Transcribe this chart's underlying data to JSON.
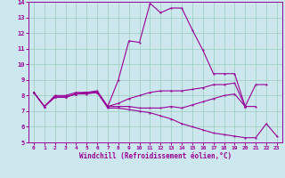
{
  "xlabel": "Windchill (Refroidissement éolien,°C)",
  "xlim": [
    -0.5,
    23.5
  ],
  "ylim": [
    5,
    14
  ],
  "yticks": [
    5,
    6,
    7,
    8,
    9,
    10,
    11,
    12,
    13,
    14
  ],
  "xticks": [
    0,
    1,
    2,
    3,
    4,
    5,
    6,
    7,
    8,
    9,
    10,
    11,
    12,
    13,
    14,
    15,
    16,
    17,
    18,
    19,
    20,
    21,
    22,
    23
  ],
  "bg_color": "#cce8ee",
  "line_color": "#990099",
  "grid_color": "#99ccbb",
  "series": [
    {
      "x": [
        0,
        1,
        2,
        3,
        4,
        5,
        6,
        7,
        8,
        9,
        10,
        11,
        12,
        13,
        14,
        15,
        16,
        17,
        18,
        19,
        20,
        21,
        22,
        23
      ],
      "y": [
        8.2,
        7.3,
        7.9,
        7.9,
        8.1,
        8.1,
        8.2,
        7.2,
        7.2,
        7.1,
        7.0,
        6.9,
        6.7,
        6.5,
        6.2,
        6.0,
        5.8,
        5.6,
        5.5,
        5.4,
        5.3,
        5.3,
        6.2,
        5.4
      ]
    },
    {
      "x": [
        0,
        1,
        2,
        3,
        4,
        5,
        6,
        7,
        8,
        9,
        10,
        11,
        12,
        13,
        14,
        15,
        16,
        17,
        18,
        19,
        20,
        21
      ],
      "y": [
        8.2,
        7.3,
        7.9,
        7.9,
        8.1,
        8.2,
        8.2,
        7.3,
        7.3,
        7.3,
        7.2,
        7.2,
        7.2,
        7.3,
        7.2,
        7.4,
        7.6,
        7.8,
        8.0,
        8.1,
        7.3,
        7.3
      ]
    },
    {
      "x": [
        0,
        1,
        2,
        3,
        4,
        5,
        6,
        7,
        8,
        9,
        10,
        11,
        12,
        13,
        14,
        15,
        16,
        17,
        18,
        19,
        20,
        21,
        22
      ],
      "y": [
        8.2,
        7.3,
        8.0,
        8.0,
        8.2,
        8.2,
        8.3,
        7.3,
        7.5,
        7.8,
        8.0,
        8.2,
        8.3,
        8.3,
        8.3,
        8.4,
        8.5,
        8.7,
        8.7,
        8.8,
        7.3,
        8.7,
        8.7
      ]
    },
    {
      "x": [
        0,
        1,
        2,
        3,
        4,
        5,
        6,
        7,
        8,
        9,
        10,
        11,
        12,
        13,
        14,
        15,
        16,
        17,
        18,
        19,
        20
      ],
      "y": [
        8.2,
        7.3,
        7.9,
        7.9,
        8.1,
        8.2,
        8.2,
        7.3,
        9.0,
        11.5,
        11.4,
        13.9,
        13.3,
        13.6,
        13.6,
        12.2,
        10.9,
        9.4,
        9.4,
        9.4,
        7.3
      ]
    }
  ]
}
